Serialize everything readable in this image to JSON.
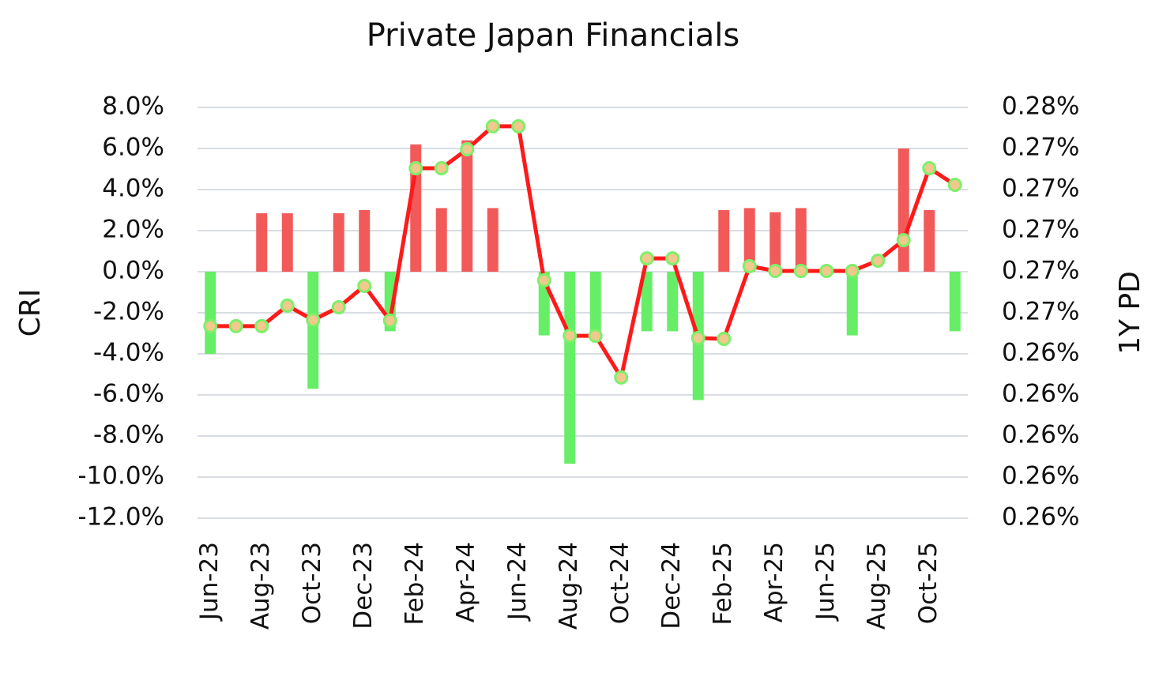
{
  "chart_data": {
    "type": "bar_line",
    "title": "Private Japan Financials",
    "ylabel": "CRI",
    "y2label": "1Y PD",
    "categories": [
      "Jun-23",
      null,
      "Aug-23",
      null,
      "Oct-23",
      null,
      "Dec-23",
      null,
      "Feb-24",
      null,
      "Apr-24",
      null,
      "Jun-24",
      null,
      "Aug-24",
      null,
      "Oct-24",
      null,
      "Dec-24",
      null,
      "Feb-25",
      null,
      "Apr-25",
      null,
      "Jun-25",
      null,
      "Aug-25",
      null,
      "Oct-25",
      null
    ],
    "series": [
      {
        "type": "bar",
        "positive_color": "#f25a5a",
        "negative_color": "#66ee66",
        "values": [
          -4.0,
          0,
          2.85,
          2.85,
          -5.7,
          2.85,
          3.0,
          -2.9,
          6.2,
          3.1,
          6.4,
          3.1,
          0,
          -3.1,
          -9.35,
          -3.1,
          0,
          -2.9,
          -2.9,
          -6.25,
          3.0,
          3.1,
          2.9,
          3.1,
          0,
          -3.1,
          0,
          6.0,
          3.0,
          -2.9
        ]
      },
      {
        "type": "line",
        "axis": "y2",
        "color": "#ff1a1a",
        "marker_fill": "#f1c98c",
        "marker_edge": "#7cf06a",
        "values": [
          0.26535,
          0.26535,
          0.26535,
          0.26635,
          0.26565,
          0.26627,
          0.26731,
          0.26562,
          0.27304,
          0.27304,
          0.27396,
          0.27508,
          0.27508,
          0.26758,
          0.26488,
          0.26488,
          0.26285,
          0.26865,
          0.26865,
          0.26477,
          0.26473,
          0.26827,
          0.26804,
          0.26804,
          0.26804,
          0.26804,
          0.26854,
          0.26954,
          0.27304,
          0.27223
        ]
      }
    ],
    "ylim": [
      -12,
      8
    ],
    "yticks": [
      {
        "value": 8,
        "label": "8.0%"
      },
      {
        "value": 6,
        "label": "6.0%"
      },
      {
        "value": 4,
        "label": "4.0%"
      },
      {
        "value": 2,
        "label": "2.0%"
      },
      {
        "value": 0,
        "label": "0.0%"
      },
      {
        "value": -2,
        "label": "-2.0%"
      },
      {
        "value": -4,
        "label": "-4.0%"
      },
      {
        "value": -6,
        "label": "-6.0%"
      },
      {
        "value": -8,
        "label": "-8.0%"
      },
      {
        "value": -10,
        "label": "-10.0%"
      },
      {
        "value": -12,
        "label": "-12.0%"
      }
    ],
    "y2lim": [
      0.256,
      0.276
    ],
    "y2ticks": [
      {
        "value": 0.276,
        "label": "0.28%"
      },
      {
        "value": 0.274,
        "label": "0.27%"
      },
      {
        "value": 0.272,
        "label": "0.27%"
      },
      {
        "value": 0.27,
        "label": "0.27%"
      },
      {
        "value": 0.268,
        "label": "0.27%"
      },
      {
        "value": 0.266,
        "label": "0.27%"
      },
      {
        "value": 0.264,
        "label": "0.26%"
      },
      {
        "value": 0.262,
        "label": "0.26%"
      },
      {
        "value": 0.26,
        "label": "0.26%"
      },
      {
        "value": 0.258,
        "label": "0.26%"
      },
      {
        "value": 0.256,
        "label": "0.26%"
      }
    ],
    "grid": true
  }
}
